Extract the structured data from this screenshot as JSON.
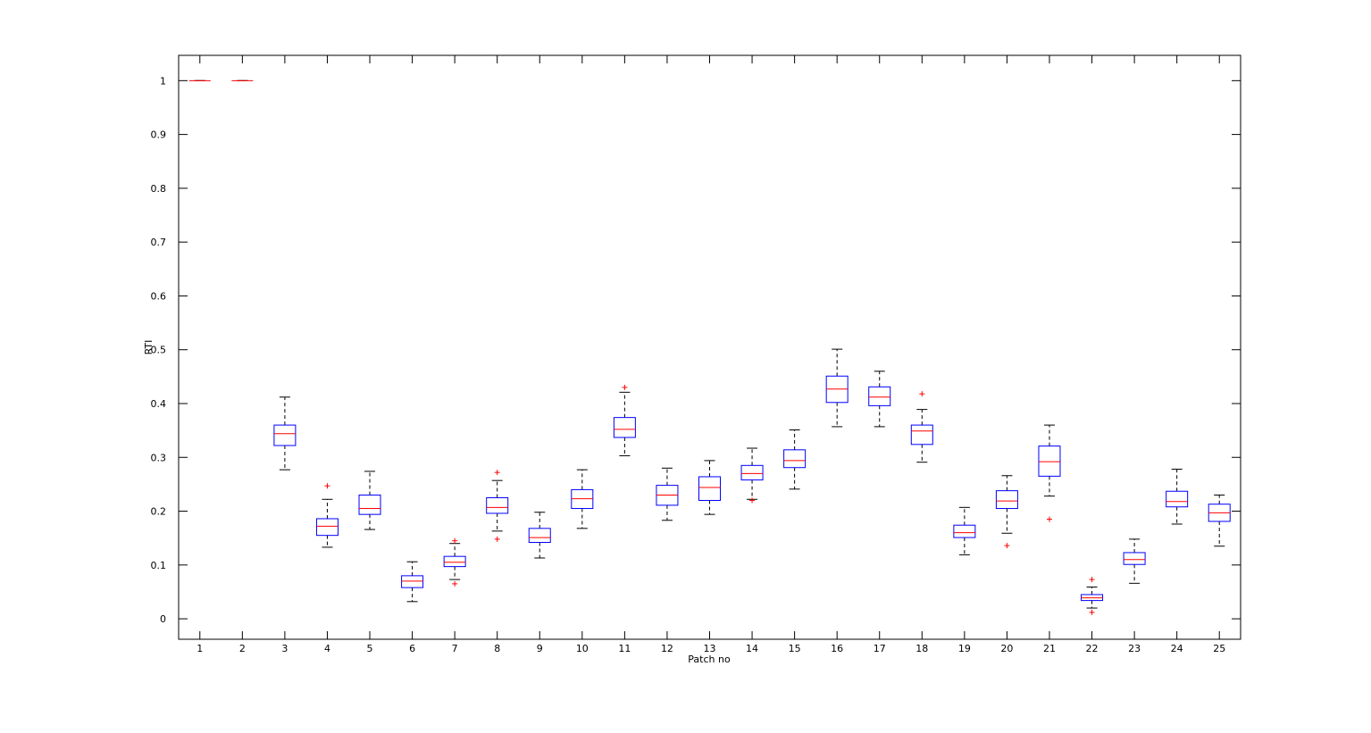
{
  "chart_data": {
    "type": "boxplot",
    "title": "",
    "xlabel": "Patch no",
    "ylabel": "RTI",
    "ylim": [
      -0.038,
      1.047
    ],
    "xlim": [
      0.5,
      25.5
    ],
    "grid": false,
    "yticks": [
      0,
      0.1,
      0.2,
      0.3,
      0.4,
      0.5,
      0.6,
      0.7,
      0.8,
      0.9,
      1
    ],
    "ytick_labels": [
      "0",
      "0.1",
      "0.2",
      "0.3",
      "0.4",
      "0.5",
      "0.6",
      "0.7",
      "0.8",
      "0.9",
      "1"
    ],
    "categories": [
      "1",
      "2",
      "3",
      "4",
      "5",
      "6",
      "7",
      "8",
      "9",
      "10",
      "11",
      "12",
      "13",
      "14",
      "15",
      "16",
      "17",
      "18",
      "19",
      "20",
      "21",
      "22",
      "23",
      "24",
      "25"
    ],
    "colors": {
      "box": "#0000ff",
      "median": "#ff0000",
      "whisker": "#000000",
      "outlier": "#ff0000"
    },
    "boxes": [
      {
        "min": 1.0,
        "q1": 1.0,
        "median": 1.0,
        "q3": 1.0,
        "max": 1.0,
        "outliers": []
      },
      {
        "min": 1.0,
        "q1": 1.0,
        "median": 1.0,
        "q3": 1.0,
        "max": 1.0,
        "outliers": []
      },
      {
        "min": 0.277,
        "q1": 0.322,
        "median": 0.344,
        "q3": 0.36,
        "max": 0.412,
        "outliers": []
      },
      {
        "min": 0.133,
        "q1": 0.155,
        "median": 0.172,
        "q3": 0.186,
        "max": 0.222,
        "outliers": [
          0.247
        ]
      },
      {
        "min": 0.166,
        "q1": 0.194,
        "median": 0.205,
        "q3": 0.23,
        "max": 0.274,
        "outliers": []
      },
      {
        "min": 0.032,
        "q1": 0.058,
        "median": 0.07,
        "q3": 0.08,
        "max": 0.106,
        "outliers": []
      },
      {
        "min": 0.073,
        "q1": 0.097,
        "median": 0.105,
        "q3": 0.116,
        "max": 0.14,
        "outliers": [
          0.145,
          0.065
        ]
      },
      {
        "min": 0.163,
        "q1": 0.196,
        "median": 0.207,
        "q3": 0.225,
        "max": 0.257,
        "outliers": [
          0.272,
          0.148
        ]
      },
      {
        "min": 0.113,
        "q1": 0.142,
        "median": 0.151,
        "q3": 0.168,
        "max": 0.198,
        "outliers": []
      },
      {
        "min": 0.168,
        "q1": 0.205,
        "median": 0.223,
        "q3": 0.24,
        "max": 0.277,
        "outliers": []
      },
      {
        "min": 0.303,
        "q1": 0.337,
        "median": 0.352,
        "q3": 0.374,
        "max": 0.421,
        "outliers": [
          0.43
        ]
      },
      {
        "min": 0.183,
        "q1": 0.211,
        "median": 0.23,
        "q3": 0.248,
        "max": 0.28,
        "outliers": []
      },
      {
        "min": 0.194,
        "q1": 0.22,
        "median": 0.244,
        "q3": 0.264,
        "max": 0.294,
        "outliers": []
      },
      {
        "min": 0.222,
        "q1": 0.258,
        "median": 0.27,
        "q3": 0.285,
        "max": 0.317,
        "outliers": [
          0.22
        ]
      },
      {
        "min": 0.241,
        "q1": 0.281,
        "median": 0.294,
        "q3": 0.314,
        "max": 0.351,
        "outliers": []
      },
      {
        "min": 0.357,
        "q1": 0.402,
        "median": 0.427,
        "q3": 0.451,
        "max": 0.501,
        "outliers": []
      },
      {
        "min": 0.357,
        "q1": 0.396,
        "median": 0.412,
        "q3": 0.431,
        "max": 0.46,
        "outliers": []
      },
      {
        "min": 0.291,
        "q1": 0.324,
        "median": 0.349,
        "q3": 0.36,
        "max": 0.389,
        "outliers": [
          0.418
        ]
      },
      {
        "min": 0.119,
        "q1": 0.151,
        "median": 0.16,
        "q3": 0.174,
        "max": 0.207,
        "outliers": []
      },
      {
        "min": 0.159,
        "q1": 0.205,
        "median": 0.219,
        "q3": 0.238,
        "max": 0.266,
        "outliers": [
          0.136
        ]
      },
      {
        "min": 0.228,
        "q1": 0.265,
        "median": 0.292,
        "q3": 0.321,
        "max": 0.36,
        "outliers": [
          0.185
        ]
      },
      {
        "min": 0.02,
        "q1": 0.034,
        "median": 0.039,
        "q3": 0.045,
        "max": 0.059,
        "outliers": [
          0.073,
          0.012
        ]
      },
      {
        "min": 0.066,
        "q1": 0.101,
        "median": 0.11,
        "q3": 0.123,
        "max": 0.148,
        "outliers": []
      },
      {
        "min": 0.176,
        "q1": 0.208,
        "median": 0.218,
        "q3": 0.237,
        "max": 0.278,
        "outliers": []
      },
      {
        "min": 0.135,
        "q1": 0.181,
        "median": 0.197,
        "q3": 0.213,
        "max": 0.23,
        "outliers": []
      }
    ]
  }
}
